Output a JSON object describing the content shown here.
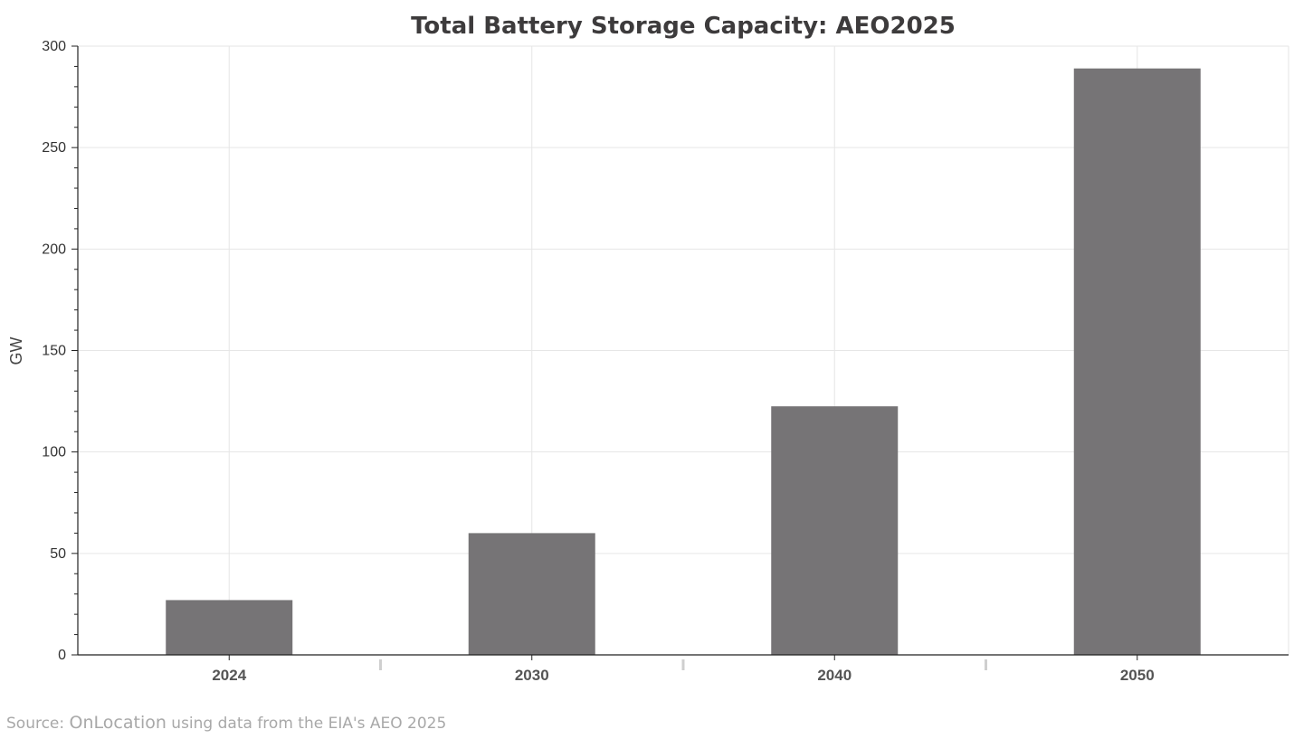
{
  "chart_data": {
    "type": "bar",
    "title": "Total Battery Storage Capacity: AEO2025",
    "xlabel": "",
    "ylabel": "GW",
    "categories": [
      "2024",
      "2030",
      "2040",
      "2050"
    ],
    "values": [
      27,
      60,
      122.5,
      289
    ],
    "ylim": [
      0,
      300
    ],
    "yticks": [
      "0",
      "50",
      "100",
      "150",
      "200",
      "250",
      "300"
    ],
    "grid": true,
    "bar_color": "#767476"
  },
  "source": {
    "prefix": "Source: ",
    "brand": "OnLocation",
    "suffix": " using data from the EIA's AEO 2025"
  }
}
